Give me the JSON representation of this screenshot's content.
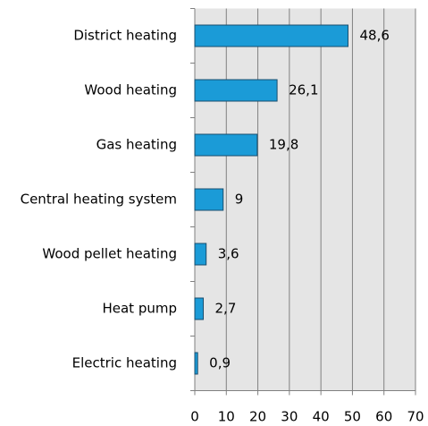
{
  "chart_data": {
    "type": "bar",
    "orientation": "horizontal",
    "categories": [
      "District heating",
      "Wood heating",
      "Gas heating",
      "Central heating system",
      "Wood pellet heating",
      "Heat pump",
      "Electric heating"
    ],
    "values": [
      48.6,
      26.1,
      19.8,
      9,
      3.6,
      2.7,
      0.9
    ],
    "value_labels": [
      "48,6",
      "26,1",
      "19,8",
      "9",
      "3,6",
      "2,7",
      "0,9"
    ],
    "color": "#1b9bd7",
    "xlim": [
      0,
      70
    ],
    "xticks": [
      0,
      10,
      20,
      30,
      40,
      50,
      60,
      70
    ],
    "grid": true
  }
}
